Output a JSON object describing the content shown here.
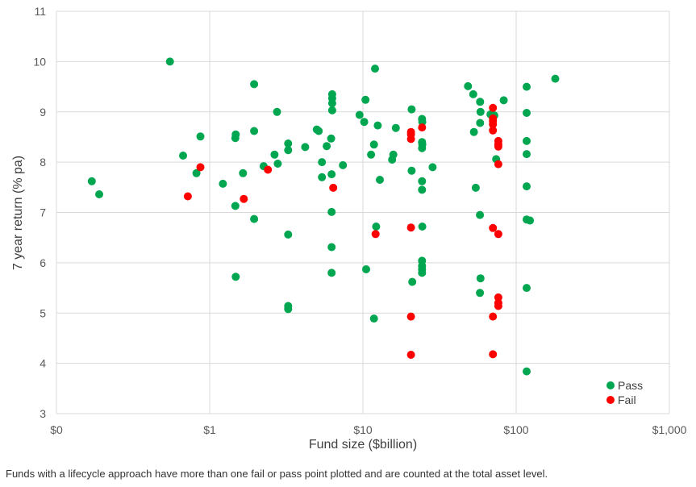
{
  "chart_data": {
    "type": "scatter",
    "xlabel": "Fund size ($billion)",
    "ylabel": "7 year return (% pa)",
    "x_scale": "log",
    "xlim": [
      0.1,
      1000
    ],
    "ylim": [
      3,
      11
    ],
    "x_ticks": [
      {
        "value": 0.1,
        "label": "$0"
      },
      {
        "value": 1,
        "label": "$1"
      },
      {
        "value": 10,
        "label": "$10"
      },
      {
        "value": 100,
        "label": "$100"
      },
      {
        "value": 1000,
        "label": "$1,000"
      }
    ],
    "y_ticks": [
      3,
      4,
      5,
      6,
      7,
      8,
      9,
      10,
      11
    ],
    "grid": true,
    "legend_position": "bottom-right",
    "series": [
      {
        "name": "Pass",
        "color": "#00a650",
        "points": [
          [
            0.17,
            7.62
          ],
          [
            0.19,
            7.36
          ],
          [
            0.55,
            10.0
          ],
          [
            0.67,
            8.13
          ],
          [
            0.82,
            7.78
          ],
          [
            0.87,
            8.51
          ],
          [
            1.22,
            7.57
          ],
          [
            1.47,
            8.48
          ],
          [
            1.48,
            8.55
          ],
          [
            1.47,
            7.13
          ],
          [
            1.48,
            5.72
          ],
          [
            1.65,
            7.78
          ],
          [
            1.95,
            9.55
          ],
          [
            1.95,
            8.62
          ],
          [
            1.95,
            6.87
          ],
          [
            2.25,
            7.92
          ],
          [
            2.65,
            8.15
          ],
          [
            2.75,
            9.0
          ],
          [
            2.78,
            7.97
          ],
          [
            3.25,
            8.37
          ],
          [
            3.25,
            8.24
          ],
          [
            3.25,
            6.56
          ],
          [
            3.25,
            5.14
          ],
          [
            3.25,
            5.08
          ],
          [
            4.2,
            8.3
          ],
          [
            5.0,
            8.65
          ],
          [
            5.15,
            8.62
          ],
          [
            5.4,
            7.7
          ],
          [
            5.4,
            8.0
          ],
          [
            5.8,
            8.32
          ],
          [
            6.2,
            8.47
          ],
          [
            6.3,
            9.35
          ],
          [
            6.3,
            9.27
          ],
          [
            6.3,
            9.17
          ],
          [
            6.3,
            9.03
          ],
          [
            6.25,
            7.76
          ],
          [
            6.25,
            7.01
          ],
          [
            6.25,
            6.31
          ],
          [
            6.25,
            5.8
          ],
          [
            7.4,
            7.94
          ],
          [
            9.5,
            8.94
          ],
          [
            10.2,
            8.8
          ],
          [
            10.4,
            9.24
          ],
          [
            10.5,
            5.87
          ],
          [
            11.3,
            8.15
          ],
          [
            11.8,
            8.35
          ],
          [
            12.0,
            9.86
          ],
          [
            12.2,
            6.72
          ],
          [
            11.8,
            4.89
          ],
          [
            12.5,
            8.73
          ],
          [
            12.9,
            7.65
          ],
          [
            15.5,
            8.05
          ],
          [
            15.8,
            8.15
          ],
          [
            16.4,
            8.68
          ],
          [
            20.8,
            9.05
          ],
          [
            20.8,
            7.83
          ],
          [
            21.0,
            5.62
          ],
          [
            24.3,
            8.86
          ],
          [
            24.4,
            8.8
          ],
          [
            24.3,
            8.4
          ],
          [
            24.4,
            8.35
          ],
          [
            24.3,
            8.28
          ],
          [
            24.3,
            7.62
          ],
          [
            24.3,
            7.45
          ],
          [
            24.4,
            6.72
          ],
          [
            24.3,
            6.04
          ],
          [
            24.3,
            5.94
          ],
          [
            24.3,
            5.87
          ],
          [
            24.3,
            5.8
          ],
          [
            28.5,
            7.9
          ],
          [
            48.5,
            9.51
          ],
          [
            52.5,
            9.35
          ],
          [
            53.0,
            8.6
          ],
          [
            54.5,
            7.49
          ],
          [
            58.0,
            6.95
          ],
          [
            58.2,
            9.2
          ],
          [
            58.5,
            9.0
          ],
          [
            58.2,
            8.78
          ],
          [
            58.5,
            5.69
          ],
          [
            58.0,
            5.4
          ],
          [
            68.0,
            8.95
          ],
          [
            72.0,
            8.93
          ],
          [
            74.0,
            8.06
          ],
          [
            83.0,
            9.23
          ],
          [
            117,
            9.5
          ],
          [
            117,
            8.98
          ],
          [
            117,
            8.42
          ],
          [
            117,
            8.16
          ],
          [
            117,
            7.52
          ],
          [
            117,
            6.86
          ],
          [
            123,
            6.84
          ],
          [
            117,
            5.5
          ],
          [
            117,
            3.84
          ],
          [
            180,
            9.66
          ]
        ]
      },
      {
        "name": "Fail",
        "color": "#ff0000",
        "points": [
          [
            0.72,
            7.32
          ],
          [
            0.87,
            7.9
          ],
          [
            1.67,
            7.27
          ],
          [
            2.4,
            7.85
          ],
          [
            6.4,
            7.49
          ],
          [
            12.1,
            6.57
          ],
          [
            20.6,
            8.6
          ],
          [
            20.6,
            8.55
          ],
          [
            20.6,
            8.46
          ],
          [
            24.3,
            8.69
          ],
          [
            20.6,
            6.7
          ],
          [
            20.6,
            4.93
          ],
          [
            20.6,
            4.17
          ],
          [
            70.5,
            9.08
          ],
          [
            70.5,
            8.87
          ],
          [
            70.5,
            8.82
          ],
          [
            70.5,
            8.75
          ],
          [
            70.5,
            8.63
          ],
          [
            70.5,
            6.69
          ],
          [
            70.5,
            4.93
          ],
          [
            70.5,
            4.18
          ],
          [
            76.5,
            8.42
          ],
          [
            76.5,
            8.36
          ],
          [
            76.5,
            8.31
          ],
          [
            76.5,
            7.96
          ],
          [
            76.5,
            6.57
          ],
          [
            76.5,
            5.31
          ],
          [
            76.5,
            5.2
          ],
          [
            76.5,
            5.14
          ]
        ]
      }
    ]
  },
  "footnote": "Funds with a lifecycle approach have more than one fail or pass point plotted and are counted at the total asset level."
}
